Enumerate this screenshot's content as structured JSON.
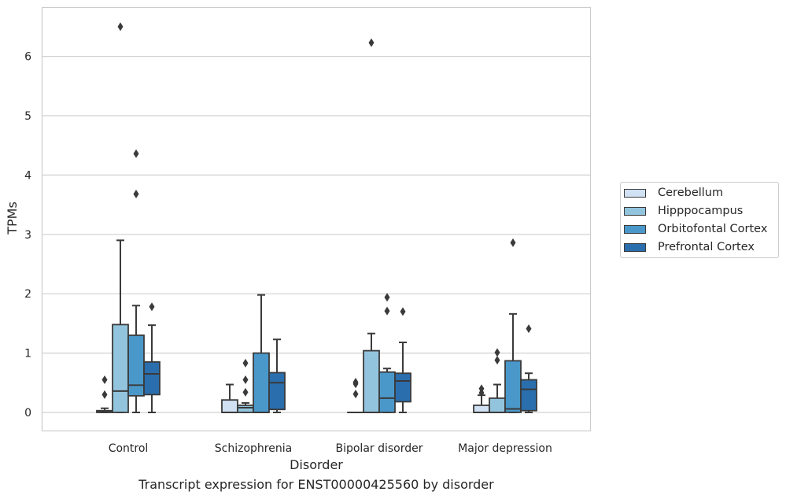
{
  "chart_data": {
    "type": "box",
    "title": "",
    "xlabel": "Disorder",
    "ylabel": "TPMs",
    "caption": "Transcript expression for ENST00000425560 by disorder",
    "categories": [
      "Control",
      "Schizophrenia",
      "Bipolar disorder",
      "Major depression"
    ],
    "ylim": [
      -0.32,
      6.82
    ],
    "yticks": [
      "0",
      "1",
      "2",
      "3",
      "4",
      "5",
      "6"
    ],
    "grid": "horizontal",
    "legend_position": "right",
    "series": [
      {
        "name": "Cerebellum",
        "color": "#cfe1f2",
        "boxes": [
          {
            "whislo": 0.0,
            "q1": 0.0,
            "med": 0.01,
            "q3": 0.03,
            "whishi": 0.07,
            "fliers": [
              0.55,
              0.3
            ]
          },
          {
            "whislo": 0.0,
            "q1": 0.0,
            "med": 0.0,
            "q3": 0.21,
            "whishi": 0.47,
            "fliers": []
          },
          {
            "whislo": 0.0,
            "q1": 0.0,
            "med": 0.0,
            "q3": 0.0,
            "whishi": 0.0,
            "fliers": [
              0.51,
              0.48,
              0.31
            ]
          },
          {
            "whislo": 0.0,
            "q1": 0.0,
            "med": 0.0,
            "q3": 0.12,
            "whishi": 0.29,
            "fliers": [
              0.4,
              0.33
            ]
          }
        ]
      },
      {
        "name": "Hipppocampus",
        "color": "#93c4de",
        "boxes": [
          {
            "whislo": 0.0,
            "q1": 0.0,
            "med": 0.36,
            "q3": 1.48,
            "whishi": 2.9,
            "fliers": [
              6.5
            ]
          },
          {
            "whislo": 0.0,
            "q1": 0.0,
            "med": 0.08,
            "q3": 0.12,
            "whishi": 0.16,
            "fliers": [
              0.83,
              0.55,
              0.34
            ]
          },
          {
            "whislo": 0.0,
            "q1": 0.0,
            "med": 0.0,
            "q3": 1.04,
            "whishi": 1.33,
            "fliers": [
              6.23
            ]
          },
          {
            "whislo": 0.0,
            "q1": 0.0,
            "med": 0.0,
            "q3": 0.24,
            "whishi": 0.47,
            "fliers": [
              1.01,
              0.88
            ]
          }
        ]
      },
      {
        "name": "Orbitofontal Cortex",
        "color": "#4a98c9",
        "boxes": [
          {
            "whislo": 0.0,
            "q1": 0.28,
            "med": 0.46,
            "q3": 1.3,
            "whishi": 1.8,
            "fliers": [
              4.36,
              3.68
            ]
          },
          {
            "whislo": 0.0,
            "q1": 0.0,
            "med": 0.0,
            "q3": 1.0,
            "whishi": 1.98,
            "fliers": []
          },
          {
            "whislo": 0.0,
            "q1": 0.0,
            "med": 0.24,
            "q3": 0.68,
            "whishi": 0.74,
            "fliers": [
              1.94,
              1.71
            ]
          },
          {
            "whislo": 0.0,
            "q1": 0.0,
            "med": 0.06,
            "q3": 0.87,
            "whishi": 1.66,
            "fliers": [
              2.86
            ]
          }
        ]
      },
      {
        "name": "Prefrontal Cortex",
        "color": "#2a6ead",
        "boxes": [
          {
            "whislo": 0.0,
            "q1": 0.3,
            "med": 0.65,
            "q3": 0.85,
            "whishi": 1.47,
            "fliers": [
              1.78
            ]
          },
          {
            "whislo": 0.0,
            "q1": 0.05,
            "med": 0.5,
            "q3": 0.67,
            "whishi": 1.23,
            "fliers": []
          },
          {
            "whislo": 0.0,
            "q1": 0.18,
            "med": 0.53,
            "q3": 0.66,
            "whishi": 1.18,
            "fliers": [
              1.7
            ]
          },
          {
            "whislo": 0.0,
            "q1": 0.03,
            "med": 0.39,
            "q3": 0.55,
            "whishi": 0.66,
            "fliers": [
              1.41
            ]
          }
        ]
      }
    ]
  }
}
